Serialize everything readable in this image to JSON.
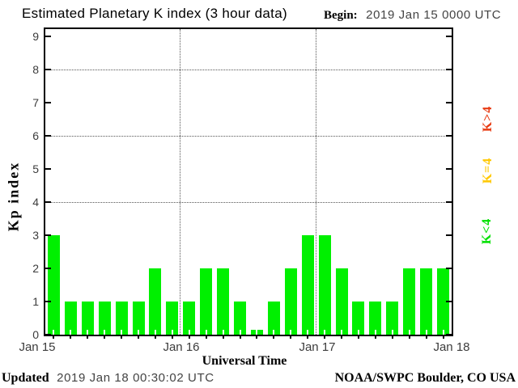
{
  "header": {
    "begin_label": "Begin:",
    "begin_value": "2019 Jan 15 0000 UTC"
  },
  "chart_data": {
    "type": "bar",
    "title": "Estimated Planetary K index (3 hour data)",
    "xlabel": "Universal Time",
    "ylabel": "Kp index",
    "ylim": [
      0,
      9
    ],
    "y_ticks": [
      0,
      1,
      2,
      3,
      4,
      5,
      6,
      7,
      8,
      9
    ],
    "gridlines_y": [
      4,
      6,
      8
    ],
    "grid": "dotted",
    "x_tick_labels": [
      "Jan 15",
      "Jan 16",
      "Jan 17",
      "Jan 18"
    ],
    "bar_interval_hours": 3,
    "x": [
      "Jan 15 00-03",
      "Jan 15 03-06",
      "Jan 15 06-09",
      "Jan 15 09-12",
      "Jan 15 12-15",
      "Jan 15 15-18",
      "Jan 15 18-21",
      "Jan 15 21-24",
      "Jan 16 00-03",
      "Jan 16 03-06",
      "Jan 16 06-09",
      "Jan 16 09-12",
      "Jan 16 12-15",
      "Jan 16 15-18",
      "Jan 16 18-21",
      "Jan 16 21-24",
      "Jan 17 00-03",
      "Jan 17 03-06",
      "Jan 17 06-09",
      "Jan 17 09-12",
      "Jan 17 12-15",
      "Jan 17 15-18",
      "Jan 17 18-21",
      "Jan 17 21-24"
    ],
    "values": [
      3,
      1,
      1,
      1,
      1,
      1,
      2,
      1,
      1,
      2,
      2,
      1,
      0,
      1,
      2,
      3,
      3,
      2,
      1,
      1,
      1,
      2,
      2,
      2
    ],
    "bar_color": "#00f000",
    "legend_position": "right"
  },
  "legend": {
    "items": [
      {
        "label": "K>4",
        "color": "#e83c14"
      },
      {
        "label": "K=4",
        "color": "#ffc800"
      },
      {
        "label": "K<4",
        "color": "#00e000"
      }
    ]
  },
  "footer": {
    "updated_label": "Updated",
    "updated_value": "2019 Jan 18 00:30:02 UTC",
    "credit": "NOAA/SWPC Boulder, CO USA"
  }
}
